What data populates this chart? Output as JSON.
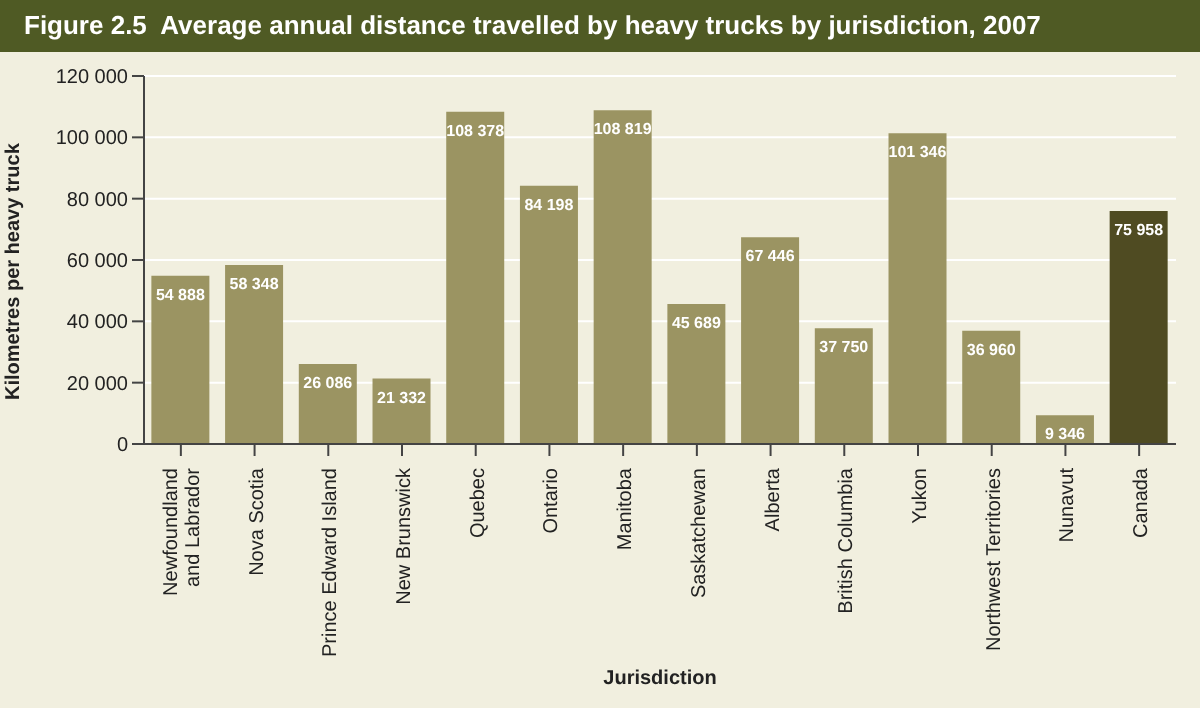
{
  "chart_data": {
    "type": "bar",
    "title": "Figure 2.5  Average annual distance travelled by heavy trucks by jurisdiction, 2007",
    "xlabel": "Jurisdiction",
    "ylabel": "Kilometres per heavy truck",
    "categories": [
      "Newfoundland and Labrador",
      "Nova Scotia",
      "Prince Edward Island",
      "New Brunswick",
      "Quebec",
      "Ontario",
      "Manitoba",
      "Saskatchewan",
      "Alberta",
      "British Columbia",
      "Yukon",
      "Northwest Territories",
      "Nunavut",
      "Canada"
    ],
    "values": [
      54888,
      58348,
      26086,
      21332,
      108378,
      84198,
      108819,
      45689,
      67446,
      37750,
      101346,
      36960,
      9346,
      75958
    ],
    "value_labels": [
      "54 888",
      "58 348",
      "26 086",
      "21 332",
      "108 378",
      "84 198",
      "108 819",
      "45 689",
      "67 446",
      "37 750",
      "101 346",
      "36 960",
      "9 346",
      "75 958"
    ],
    "colors": [
      "#9b9462",
      "#9b9462",
      "#9b9462",
      "#9b9462",
      "#9b9462",
      "#9b9462",
      "#9b9462",
      "#9b9462",
      "#9b9462",
      "#9b9462",
      "#9b9462",
      "#9b9462",
      "#9b9462",
      "#4f4b22"
    ],
    "ylim": [
      0,
      120000
    ],
    "yticks": [
      0,
      {
        "value": 20000,
        "label": "20 000"
      },
      {
        "value": 40000,
        "label": "40 000"
      },
      {
        "value": 60000,
        "label": "60 000"
      },
      {
        "value": 80000,
        "label": "80 000"
      },
      {
        "value": 100000,
        "label": "100 000"
      },
      {
        "value": 120000,
        "label": "120 000"
      }
    ],
    "grid": "y",
    "legend": false
  }
}
